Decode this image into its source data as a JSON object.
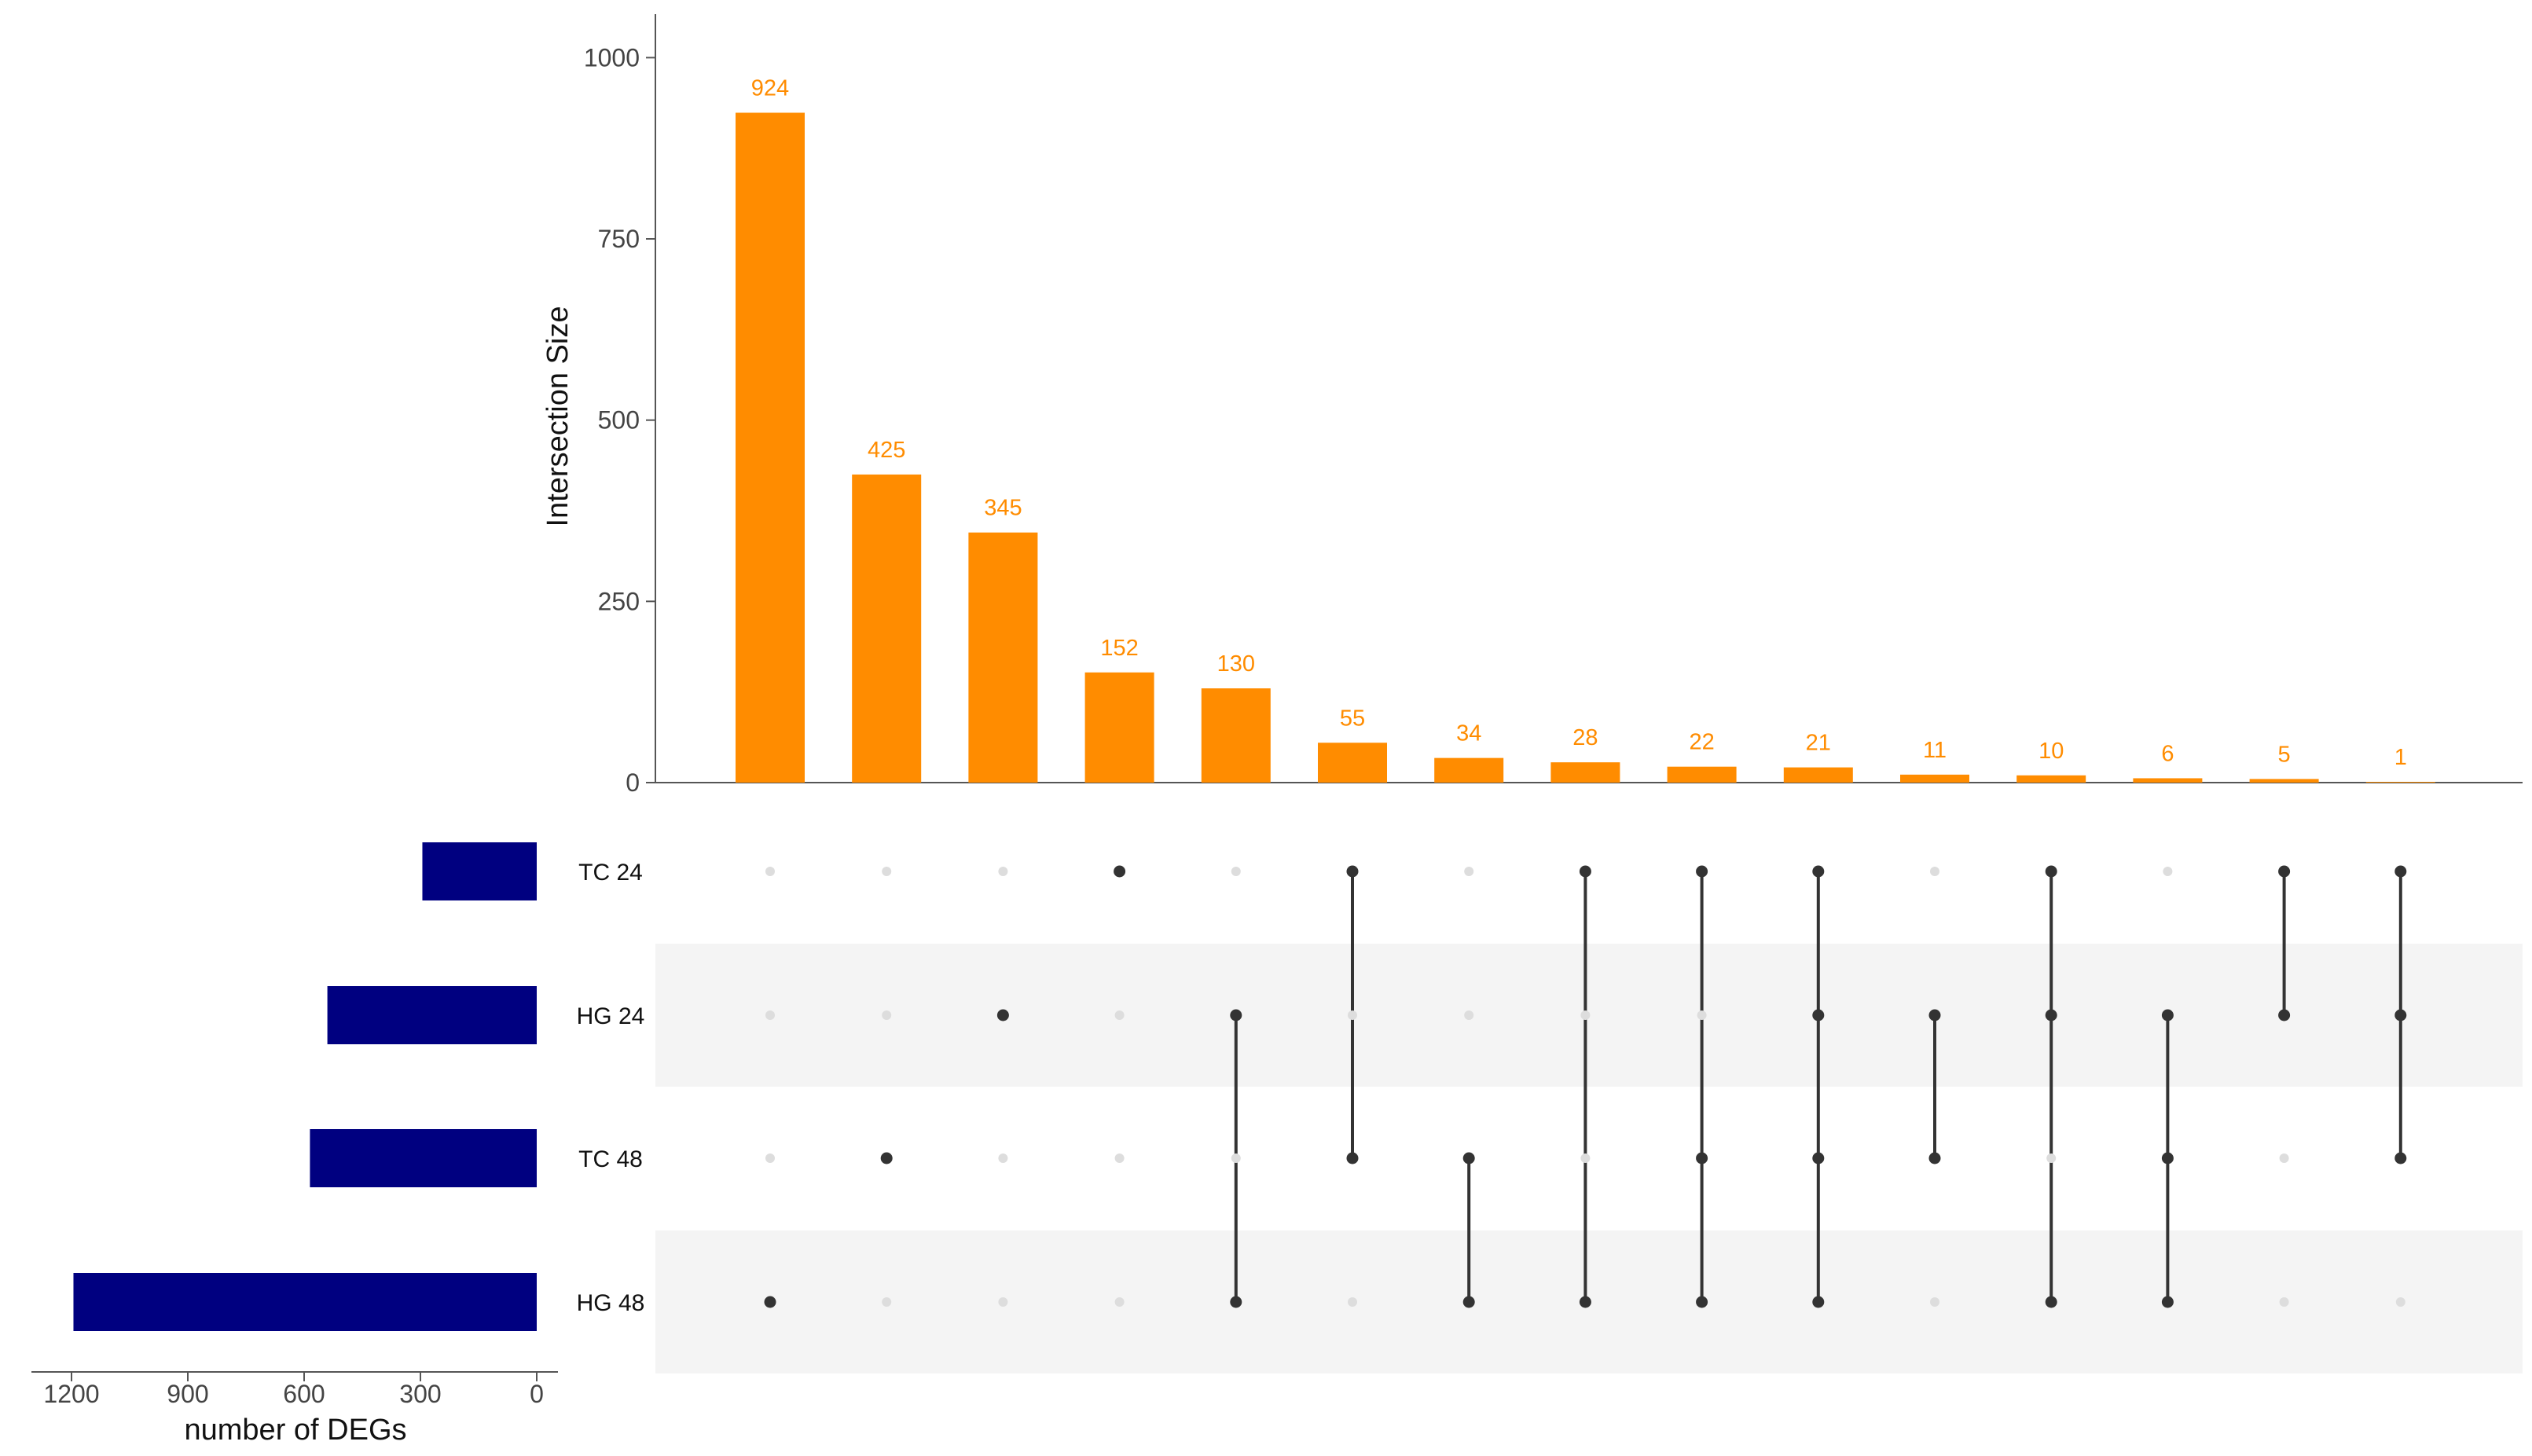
{
  "chart_data": {
    "type": "bar",
    "subtype": "upset",
    "intersections": {
      "ylabel": "Intersection Size",
      "ylim": [
        0,
        1060
      ],
      "yticks": [
        "0",
        "250",
        "500",
        "750",
        "1000"
      ],
      "values": [
        924,
        425,
        345,
        152,
        130,
        55,
        34,
        28,
        22,
        21,
        11,
        10,
        6,
        5,
        1
      ],
      "labels": [
        "924",
        "425",
        "345",
        "152",
        "130",
        "55",
        "34",
        "28",
        "22",
        "21",
        "11",
        "10",
        "6",
        "5",
        "1"
      ],
      "membership": [
        [
          "HG 48"
        ],
        [
          "TC 48"
        ],
        [
          "HG 24"
        ],
        [
          "TC 24"
        ],
        [
          "HG 24",
          "HG 48"
        ],
        [
          "TC 24",
          "TC 48"
        ],
        [
          "TC 48",
          "HG 48"
        ],
        [
          "TC 24",
          "HG 48"
        ],
        [
          "TC 24",
          "TC 48",
          "HG 48"
        ],
        [
          "TC 24",
          "HG 24",
          "TC 48",
          "HG 48"
        ],
        [
          "HG 24",
          "TC 48"
        ],
        [
          "TC 24",
          "HG 24",
          "HG 48"
        ],
        [
          "HG 24",
          "TC 48",
          "HG 48"
        ],
        [
          "TC 24",
          "HG 24"
        ],
        [
          "TC 24",
          "HG 24",
          "TC 48"
        ]
      ],
      "bar_color": "#ff8c00",
      "label_color": "#ff8c00"
    },
    "sets": {
      "names": [
        "TC 24",
        "HG 24",
        "TC 48",
        "HG 48"
      ],
      "sizes": [
        295,
        540,
        585,
        1195
      ],
      "xlabel": "number of DEGs",
      "xlim": [
        0,
        1270
      ],
      "xticks": [
        "1200",
        "900",
        "600",
        "300",
        "0"
      ],
      "bar_color": "#000080"
    },
    "matrix": {
      "dot_active": "#333333",
      "dot_inactive": "#dddddd",
      "stripe_color": "#f4f4f4"
    }
  }
}
